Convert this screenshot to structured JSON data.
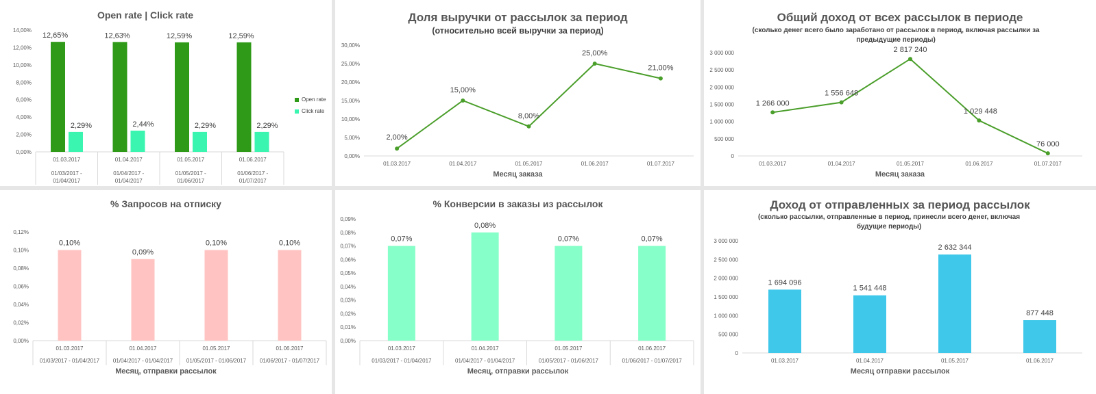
{
  "colors": {
    "open_rate": "#2e9a17",
    "click_rate": "#3af5b0",
    "line_green": "#4a9e2a",
    "unsubscribe": "#ffc4c2",
    "conversion": "#86ffc8",
    "revenue": "#40c8ea"
  },
  "chart_data": [
    {
      "id": "open-click",
      "type": "bar",
      "title": "Open rate | Click rate",
      "categories": [
        "01.03.2017",
        "01.04.2017",
        "01.05.2017",
        "01.06.2017"
      ],
      "categories_sub": [
        "01/03/2017 -\n01/04/2017",
        "01/04/2017 -\n01/04/2017",
        "01/05/2017 -\n01/06/2017",
        "01/06/2017 -\n01/07/2017"
      ],
      "series": [
        {
          "name": "Open rate",
          "values": [
            12.65,
            12.63,
            12.59,
            12.59
          ],
          "labels": [
            "12,65%",
            "12,63%",
            "12,59%",
            "12,59%"
          ]
        },
        {
          "name": "Click rate",
          "values": [
            2.29,
            2.44,
            2.29,
            2.29
          ],
          "labels": [
            "2,29%",
            "2,44%",
            "2,29%",
            "2,29%"
          ]
        }
      ],
      "ylim": [
        0,
        14
      ],
      "yticks": [
        "0,00%",
        "2,00%",
        "4,00%",
        "6,00%",
        "8,00%",
        "10,00%",
        "12,00%",
        "14,00%"
      ],
      "legend": "right"
    },
    {
      "id": "revenue-share",
      "type": "line",
      "title": "Доля выручки от рассылок за период",
      "subtitle": "(относительно всей выручки за период)",
      "xlabel": "Месяц заказа",
      "categories": [
        "01.03.2017",
        "01.04.2017",
        "01.05.2017",
        "01.06.2017",
        "01.07.2017"
      ],
      "values": [
        2,
        15,
        8,
        25,
        21
      ],
      "labels": [
        "2,00%",
        "15,00%",
        "8,00%",
        "25,00%",
        "21,00%"
      ],
      "ylim": [
        0,
        30
      ],
      "yticks": [
        "0,00%",
        "5,00%",
        "10,00%",
        "15,00%",
        "20,00%",
        "25,00%",
        "30,00%"
      ]
    },
    {
      "id": "total-income",
      "type": "line",
      "title": "Общий доход от всех рассылок в периоде",
      "subtitle": "(сколько денег всего было заработано от рассылок в период, включая рассылки за предыдущие периоды)",
      "xlabel": "Месяц заказа",
      "categories": [
        "01.03.2017",
        "01.04.2017",
        "01.05.2017",
        "01.06.2017",
        "01.07.2017"
      ],
      "values": [
        1266000,
        1556648,
        2817240,
        1029448,
        76000
      ],
      "labels": [
        "1 266 000",
        "1 556 648",
        "2 817 240",
        "1 029 448",
        "76 000"
      ],
      "ylim": [
        0,
        3000000
      ],
      "yticks": [
        "0",
        "500 000",
        "1 000 000",
        "1 500 000",
        "2 000 000",
        "2 500 000",
        "3 000 000"
      ]
    },
    {
      "id": "unsubscribe",
      "type": "bar",
      "title": "% Запросов на отписку",
      "xlabel": "Месяц, отправки рассылок",
      "categories": [
        "01.03.2017",
        "01.04.2017",
        "01.05.2017",
        "01.06.2017"
      ],
      "categories_sub": [
        "01/03/2017 - 01/04/2017",
        "01/04/2017 - 01/04/2017",
        "01/05/2017 - 01/06/2017",
        "01/06/2017 - 01/07/2017"
      ],
      "values": [
        0.1,
        0.09,
        0.1,
        0.1
      ],
      "labels": [
        "0,10%",
        "0,09%",
        "0,10%",
        "0,10%"
      ],
      "ylim": [
        0,
        0.12
      ],
      "yticks": [
        "0,00%",
        "0,02%",
        "0,04%",
        "0,06%",
        "0,08%",
        "0,10%",
        "0,12%"
      ]
    },
    {
      "id": "conversion",
      "type": "bar",
      "title": "% Конверсии в заказы из рассылок",
      "xlabel": "Месяц, отправки рассылок",
      "categories": [
        "01.03.2017",
        "01.04.2017",
        "01.05.2017",
        "01.06.2017"
      ],
      "categories_sub": [
        "01/03/2017 - 01/04/2017",
        "01/04/2017 - 01/04/2017",
        "01/05/2017 - 01/06/2017",
        "01/06/2017 - 01/07/2017"
      ],
      "values": [
        0.07,
        0.08,
        0.07,
        0.07
      ],
      "labels": [
        "0,07%",
        "0,08%",
        "0,07%",
        "0,07%"
      ],
      "ylim": [
        0,
        0.09
      ],
      "yticks": [
        "0,00%",
        "0,01%",
        "0,02%",
        "0,03%",
        "0,04%",
        "0,05%",
        "0,06%",
        "0,07%",
        "0,08%",
        "0,09%"
      ]
    },
    {
      "id": "sent-income",
      "type": "bar",
      "title": "Доход от отправленных за период рассылок",
      "subtitle": "(сколько рассылки,  отправленные в период, принесли всего денег, включая будущие периоды)",
      "xlabel": "Месяц отправки рассылок",
      "categories": [
        "01.03.2017",
        "01.04.2017",
        "01.05.2017",
        "01.06.2017"
      ],
      "values": [
        1694096,
        1541448,
        2632344,
        877448
      ],
      "labels": [
        "1 694 096",
        "1 541 448",
        "2 632 344",
        "877 448"
      ],
      "ylim": [
        0,
        3000000
      ],
      "yticks": [
        "0",
        "500 000",
        "1 000 000",
        "1 500 000",
        "2 000 000",
        "2 500 000",
        "3 000 000"
      ]
    }
  ]
}
